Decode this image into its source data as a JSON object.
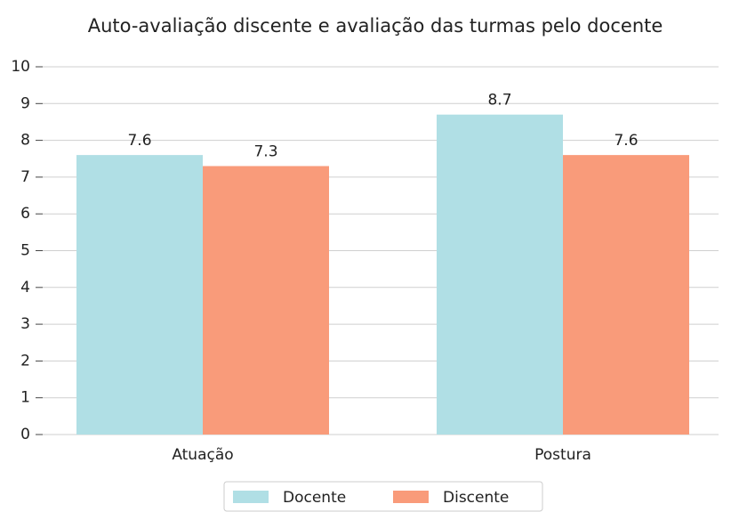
{
  "chart_data": {
    "type": "bar",
    "title": "Auto-avaliação discente e avaliação das turmas pelo docente",
    "categories": [
      "Atuação",
      "Postura"
    ],
    "series": [
      {
        "name": "Docente",
        "color": "#b0dfe5",
        "values": [
          7.6,
          8.7
        ]
      },
      {
        "name": "Discente",
        "color": "#f99b7a",
        "values": [
          7.3,
          7.6
        ]
      }
    ],
    "ylim": [
      0,
      10
    ],
    "yticks": [
      0,
      1,
      2,
      3,
      4,
      5,
      6,
      7,
      8,
      9,
      10
    ],
    "grid": true,
    "legend": "bottom"
  }
}
